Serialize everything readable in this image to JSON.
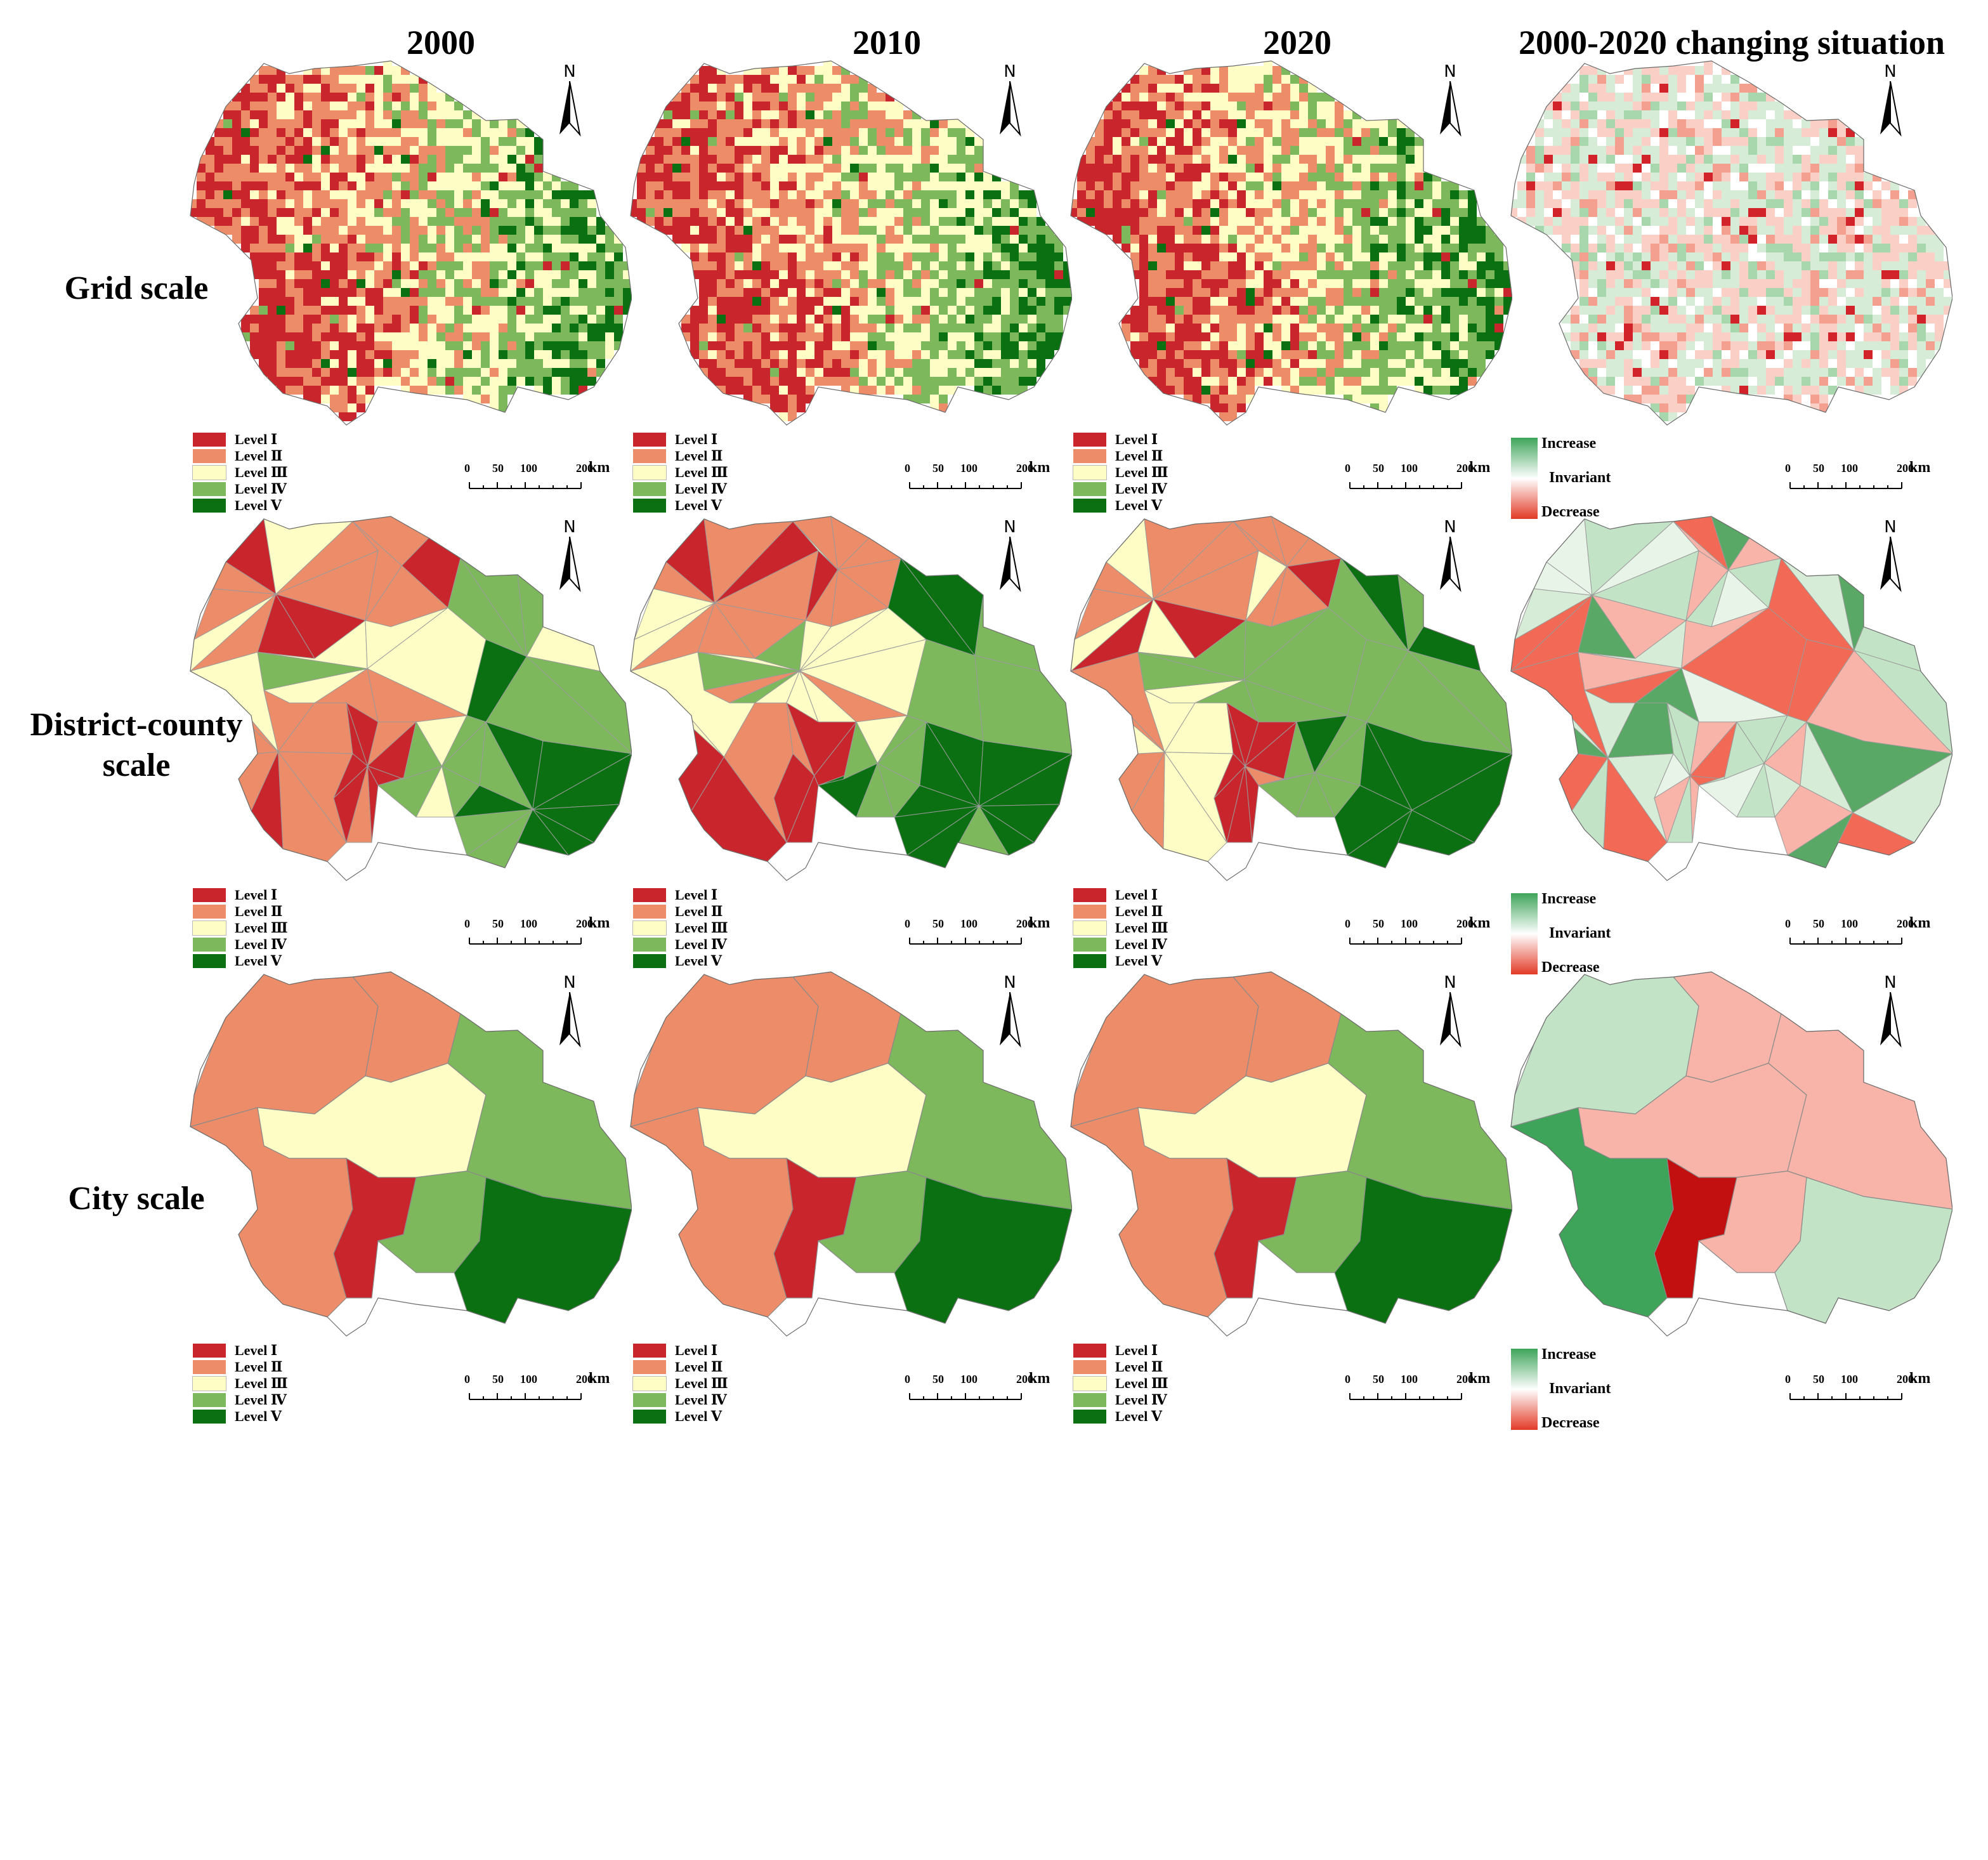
{
  "columns": [
    {
      "title": "2000",
      "mode": "level"
    },
    {
      "title": "2010",
      "mode": "level"
    },
    {
      "title": "2020",
      "mode": "level"
    },
    {
      "title": "2000-2020 changing situation",
      "mode": "change"
    }
  ],
  "rows": [
    {
      "label": "Grid scale",
      "scale": "grid"
    },
    {
      "label": "District-county\nscale",
      "scale": "district"
    },
    {
      "label": "City scale",
      "scale": "city"
    }
  ],
  "legend": {
    "levels": [
      {
        "label": "Level Ⅰ",
        "color": "#c8262c"
      },
      {
        "label": "Level Ⅱ",
        "color": "#ec8c68"
      },
      {
        "label": "Level Ⅲ",
        "color": "#fefdc6"
      },
      {
        "label": "Level Ⅳ",
        "color": "#7db85c"
      },
      {
        "label": "Level Ⅴ",
        "color": "#0a7012"
      }
    ],
    "change": {
      "increase": "Increase",
      "invariant": "Invariant",
      "decrease": "Decrease"
    }
  },
  "north_arrow": {
    "label": "N"
  },
  "scalebar": {
    "ticks": [
      "0",
      "50",
      "100",
      "200"
    ],
    "unit": "km"
  },
  "colors": {
    "change_increase_strong": "#3ea45a",
    "change_increase_weak": "#c3e3c6",
    "change_decrease_weak": "#f8b4a8",
    "change_decrease_strong": "#c20f0f"
  }
}
